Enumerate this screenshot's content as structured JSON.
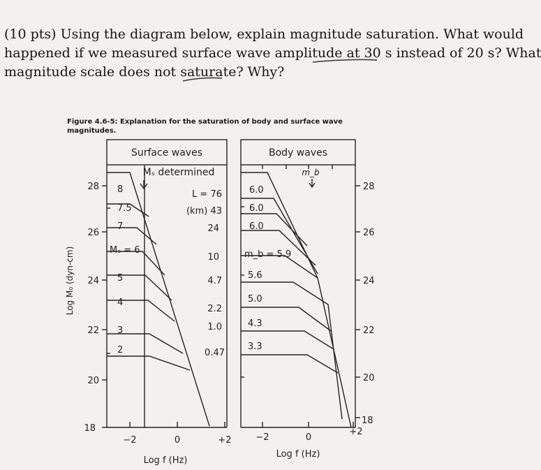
{
  "question": {
    "lines": [
      "(10 pts) Using the diagram below, explain magnitude saturation. What would",
      "happened if we measured surface wave amplitude at 30 s instead of 20 s? What",
      "magnitude scale does not saturate? Why?"
    ]
  },
  "figure": {
    "caption_line1": "Figure 4.6-5: Explanation for the saturation of body and surface wave",
    "caption_line2": "magnitudes.",
    "y_axis_label": "Log M₀ (dyn-cm)",
    "surface_panel": {
      "title": "Surface waves",
      "subtitle": "Mₛ determined",
      "left_ticks": [
        "28",
        "26",
        "24",
        "22",
        "20",
        "18"
      ],
      "ms_labels": [
        "8",
        "7.5",
        "7",
        "Mₛ = 6",
        "5",
        "4",
        "3",
        "2"
      ],
      "l_header_1": "L = 76",
      "l_header_2": "(km) 43",
      "l_values": [
        "24",
        "10",
        "4.7",
        "2.2",
        "1.0",
        "0.47"
      ],
      "x_ticks": [
        "−2",
        "0",
        "+2"
      ],
      "x_label": "Log f (Hz)"
    },
    "body_panel": {
      "title": "Body waves",
      "marker": "m_b",
      "mb_labels": [
        "6.0",
        "6.0",
        "6.0",
        "m_b = 5.9",
        "5.6",
        "5.0",
        "4.3",
        "3.3"
      ],
      "right_ticks": [
        "28",
        "26",
        "24",
        "22",
        "20",
        "18"
      ],
      "x_ticks": [
        "−2",
        "0",
        "+2"
      ],
      "x_label": "Log f (Hz)"
    }
  }
}
